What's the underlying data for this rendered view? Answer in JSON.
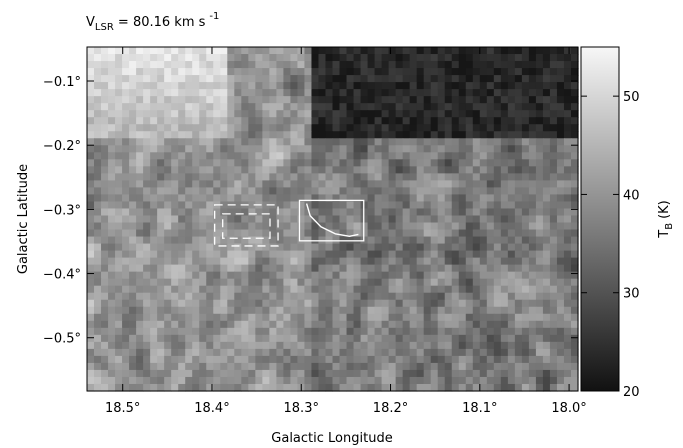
{
  "figure": {
    "title_main": "V",
    "title_sub": "LSR",
    "title_eq": " = 80.16 km s",
    "title_sup": "-1"
  },
  "chart_data": {
    "type": "heatmap",
    "xlabel": "Galactic Longitude",
    "ylabel": "Galactic Latitude",
    "xlim": [
      18.54,
      17.99
    ],
    "ylim": [
      -0.583,
      -0.047
    ],
    "x_ticks": [
      {
        "value": 18.5,
        "label": "18.5°"
      },
      {
        "value": 18.4,
        "label": "18.4°"
      },
      {
        "value": 18.3,
        "label": "18.3°"
      },
      {
        "value": 18.2,
        "label": "18.2°"
      },
      {
        "value": 18.1,
        "label": "18.1°"
      },
      {
        "value": 18.0,
        "label": "18.0°"
      }
    ],
    "y_ticks": [
      {
        "value": -0.1,
        "label": "−0.1°"
      },
      {
        "value": -0.2,
        "label": "−0.2°"
      },
      {
        "value": -0.3,
        "label": "−0.3°"
      },
      {
        "value": -0.4,
        "label": "−0.4°"
      },
      {
        "value": -0.5,
        "label": "−0.5°"
      }
    ],
    "colorbar": {
      "label_main": "T",
      "label_sub": "B",
      "label_unit": "(K)",
      "min": 20,
      "max": 55,
      "ticks": [
        {
          "value": 20,
          "label": "20"
        },
        {
          "value": 30,
          "label": "30"
        },
        {
          "value": 40,
          "label": "40"
        },
        {
          "value": 50,
          "label": "50"
        }
      ]
    },
    "regions": [
      {
        "name": "dashed-outer-box",
        "style": "dashed",
        "l": [
          18.397,
          18.326
        ],
        "b": [
          -0.293,
          -0.357
        ]
      },
      {
        "name": "dashed-inner-box",
        "style": "dashed",
        "l": [
          18.388,
          18.335
        ],
        "b": [
          -0.307,
          -0.345
        ]
      },
      {
        "name": "solid-box",
        "style": "solid",
        "l": [
          18.302,
          18.23
        ],
        "b": [
          -0.286,
          -0.349
        ]
      }
    ],
    "contour": {
      "color": "#ffffff",
      "points": [
        [
          18.294,
          -0.291
        ],
        [
          18.29,
          -0.31
        ],
        [
          18.278,
          -0.327
        ],
        [
          18.262,
          -0.338
        ],
        [
          18.246,
          -0.342
        ],
        [
          18.236,
          -0.339
        ]
      ]
    }
  }
}
